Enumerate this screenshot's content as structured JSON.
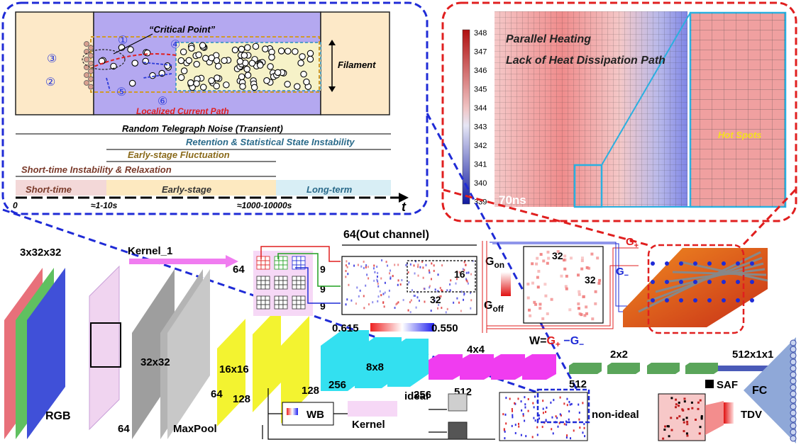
{
  "timeline": {
    "critical_point": "“Critical Point”",
    "filament": "Filament",
    "localized_path": "Localized Current Path",
    "markers": [
      "①",
      "②",
      "③",
      "④",
      "⑤",
      "⑥"
    ],
    "rtn": "Random Telegraph Noise (Transient)",
    "retention": "Retention & Statistical State Instability",
    "early_fluct": "Early-stage Fluctuation",
    "short_instab": "Short-time Instability & Relaxation",
    "short_time": "Short-time",
    "early_stage": "Early-stage",
    "long_term": "Long-term",
    "tick0": "0",
    "tick1": "≈1-10s",
    "tick2": "≈1000-10000s",
    "axis": "t"
  },
  "thermal": {
    "scale": [
      "348",
      "347",
      "346",
      "345",
      "344",
      "343",
      "342",
      "341",
      "340",
      "339"
    ],
    "line1": "Parallel Heating",
    "line2": "Lack of Heat Dissipation Path",
    "time": "70ns",
    "hot_spots": "Hot Spots"
  },
  "network": {
    "input_size": "3x32x32",
    "rgb": "RGB",
    "kernel": "Kernel_1",
    "k64": "64",
    "out_channel": "64(Out channel)",
    "nine": "9",
    "sixteen": "16",
    "thirtytwo": "32",
    "range_lo": "0.615",
    "range_hi": "0.550",
    "gon": "G",
    "gon_sub": "on",
    "goff": "G",
    "goff_sub": "off",
    "g_plus": "G",
    "g_plus_sub": "+",
    "g_minus": "G",
    "g_minus_sub": "−",
    "w_eq_lead": "W=",
    "w_eq_g": "G",
    "w_eq_plus": "+",
    "w_eq_mid": " −G",
    "w_eq_minus": "−",
    "s32x32": "32x32",
    "s16x16": "16x16",
    "s8x8": "8x8",
    "s4x4": "4x4",
    "s2x2": "2x2",
    "s512x1x1": "512x1x1",
    "c64": "64",
    "c64b": "64",
    "c128": "128",
    "c128b": "128",
    "c256": "256",
    "c256b": "256",
    "c512": "512",
    "c512b": "512",
    "maxpool": "MaxPool",
    "fc": "FC",
    "wb": "WB",
    "kernel2": "Kernel",
    "ideal": "ideal",
    "non_ideal": "non-ideal",
    "saf": "SAF",
    "tdv": "TDV"
  },
  "colors": {
    "blue_dash": "#1f2bd6",
    "red_dash": "#e01f1f",
    "conv_yellow": "#f2f21a",
    "conv_cyan": "#33e0f0",
    "conv_magenta": "#f03cf0",
    "conv_green": "#5aa55a",
    "fc_blue": "#8fa8d8"
  }
}
